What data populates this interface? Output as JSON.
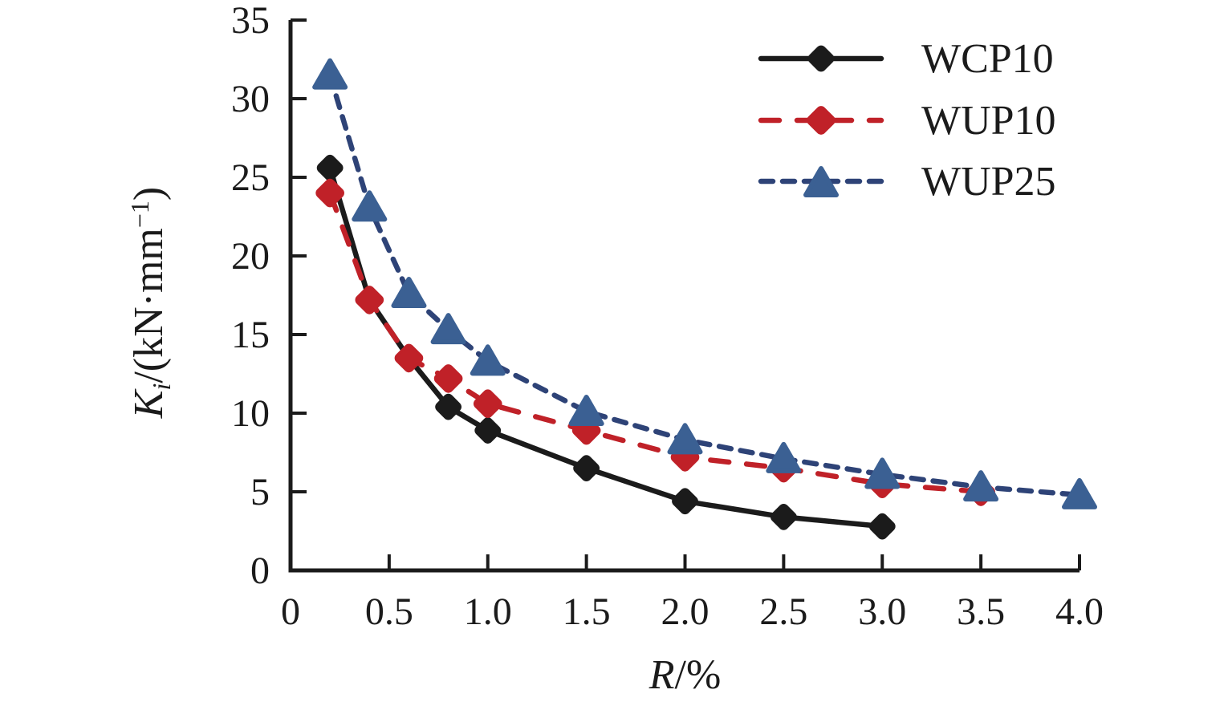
{
  "chart_data": {
    "type": "line",
    "title": "",
    "xlabel": {
      "sym": "R",
      "rest": "/%"
    },
    "ylabel": {
      "sym": "K",
      "sub": "i",
      "mid": "/(kN·mm",
      "sup": "−1",
      "end": ")"
    },
    "xlim": [
      0,
      4.0
    ],
    "ylim": [
      0,
      35
    ],
    "grid": false,
    "legend_position": "top-right",
    "xticks": {
      "values": [
        0,
        0.5,
        1.0,
        1.5,
        2.0,
        2.5,
        3.0,
        3.5,
        4.0
      ],
      "labels": [
        "0",
        "0.5",
        "1.0",
        "1.5",
        "2.0",
        "2.5",
        "3.0",
        "3.5",
        "4.0"
      ]
    },
    "yticks": {
      "values": [
        0,
        5,
        10,
        15,
        20,
        25,
        30,
        35
      ],
      "labels": [
        "0",
        "5",
        "10",
        "15",
        "20",
        "25",
        "30",
        "35"
      ]
    },
    "series": [
      {
        "name": "WCP10",
        "line": "solid",
        "dash": null,
        "marker": "diamond",
        "color": "#1b1b1b",
        "marker_color": "#1b1b1b",
        "points": [
          [
            0.2,
            25.6
          ],
          [
            0.4,
            17.2
          ],
          [
            0.6,
            13.5
          ],
          [
            0.8,
            10.4
          ],
          [
            1.0,
            8.9
          ],
          [
            1.5,
            6.5
          ],
          [
            2.0,
            4.4
          ],
          [
            2.5,
            3.4
          ],
          [
            3.0,
            2.8
          ]
        ]
      },
      {
        "name": "WUP10",
        "line": "long-dash",
        "dash": "23 22",
        "marker": "diamond",
        "color": "#c02128",
        "marker_color": "#c02128",
        "points": [
          [
            0.2,
            24.0
          ],
          [
            0.4,
            17.2
          ],
          [
            0.6,
            13.5
          ],
          [
            0.8,
            12.2
          ],
          [
            1.0,
            10.6
          ],
          [
            1.5,
            8.9
          ],
          [
            2.0,
            7.2
          ],
          [
            2.5,
            6.5
          ],
          [
            3.0,
            5.5
          ],
          [
            3.5,
            5.0
          ]
        ]
      },
      {
        "name": "WUP25",
        "line": "short-dash",
        "dash": "15 12",
        "marker": "triangle",
        "color": "#2e4377",
        "marker_color": "#3b6093",
        "points": [
          [
            0.2,
            31.5
          ],
          [
            0.4,
            23.1
          ],
          [
            0.6,
            17.6
          ],
          [
            0.8,
            15.3
          ],
          [
            1.0,
            13.3
          ],
          [
            1.5,
            10.1
          ],
          [
            2.0,
            8.3
          ],
          [
            2.5,
            7.1
          ],
          [
            3.0,
            6.1
          ],
          [
            3.5,
            5.3
          ],
          [
            4.0,
            4.8
          ]
        ]
      }
    ],
    "legend": {
      "items": [
        "WCP10",
        "WUP10",
        "WUP25"
      ]
    }
  }
}
